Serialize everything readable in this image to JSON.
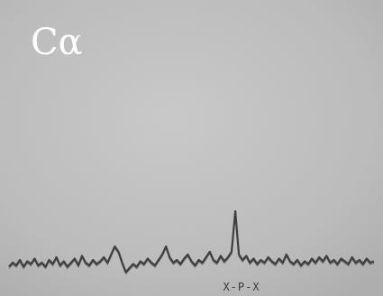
{
  "chart_data": {
    "type": "line",
    "title": "",
    "panel_label": "Cα",
    "xlabel": "X-P-X",
    "ylabel": "",
    "grid": false,
    "legend": "none",
    "xlim": [
      0,
      100
    ],
    "ylim": [
      0,
      100
    ],
    "series": [
      {
        "color": "#3f3f3f",
        "points": [
          [
            0,
            3
          ],
          [
            1,
            6
          ],
          [
            2,
            4
          ],
          [
            3,
            8
          ],
          [
            4,
            3
          ],
          [
            5,
            7
          ],
          [
            6,
            5
          ],
          [
            7,
            9
          ],
          [
            8,
            4
          ],
          [
            9,
            6
          ],
          [
            10,
            3
          ],
          [
            11,
            8
          ],
          [
            12,
            5
          ],
          [
            13,
            10
          ],
          [
            14,
            4
          ],
          [
            15,
            7
          ],
          [
            16,
            3
          ],
          [
            17,
            6
          ],
          [
            18,
            9
          ],
          [
            19,
            4
          ],
          [
            20,
            11
          ],
          [
            21,
            6
          ],
          [
            22,
            4
          ],
          [
            23,
            8
          ],
          [
            24,
            5
          ],
          [
            25,
            7
          ],
          [
            26,
            10
          ],
          [
            27,
            6
          ],
          [
            28,
            12
          ],
          [
            29,
            18
          ],
          [
            30,
            14
          ],
          [
            31,
            6
          ],
          [
            32,
            -1
          ],
          [
            33,
            2
          ],
          [
            34,
            5
          ],
          [
            35,
            3
          ],
          [
            36,
            7
          ],
          [
            37,
            5
          ],
          [
            38,
            9
          ],
          [
            39,
            6
          ],
          [
            40,
            4
          ],
          [
            41,
            8
          ],
          [
            42,
            12
          ],
          [
            43,
            18
          ],
          [
            44,
            10
          ],
          [
            45,
            6
          ],
          [
            46,
            8
          ],
          [
            47,
            5
          ],
          [
            48,
            9
          ],
          [
            49,
            12
          ],
          [
            50,
            7
          ],
          [
            51,
            4
          ],
          [
            52,
            8
          ],
          [
            53,
            6
          ],
          [
            54,
            10
          ],
          [
            55,
            14
          ],
          [
            56,
            8
          ],
          [
            57,
            6
          ],
          [
            58,
            11
          ],
          [
            59,
            7
          ],
          [
            60,
            10
          ],
          [
            61,
            14
          ],
          [
            62,
            44
          ],
          [
            63,
            12
          ],
          [
            64,
            8
          ],
          [
            65,
            11
          ],
          [
            66,
            6
          ],
          [
            67,
            9
          ],
          [
            68,
            5
          ],
          [
            69,
            8
          ],
          [
            70,
            6
          ],
          [
            71,
            10
          ],
          [
            72,
            7
          ],
          [
            73,
            5
          ],
          [
            74,
            9
          ],
          [
            75,
            6
          ],
          [
            76,
            12
          ],
          [
            77,
            7
          ],
          [
            78,
            5
          ],
          [
            79,
            8
          ],
          [
            80,
            4
          ],
          [
            81,
            7
          ],
          [
            82,
            5
          ],
          [
            83,
            9
          ],
          [
            84,
            6
          ],
          [
            85,
            10
          ],
          [
            86,
            7
          ],
          [
            87,
            11
          ],
          [
            88,
            6
          ],
          [
            89,
            8
          ],
          [
            90,
            5
          ],
          [
            91,
            9
          ],
          [
            92,
            7
          ],
          [
            93,
            5
          ],
          [
            94,
            10
          ],
          [
            95,
            6
          ],
          [
            96,
            8
          ],
          [
            97,
            5
          ],
          [
            98,
            9
          ],
          [
            99,
            6
          ],
          [
            100,
            7
          ]
        ]
      }
    ]
  }
}
